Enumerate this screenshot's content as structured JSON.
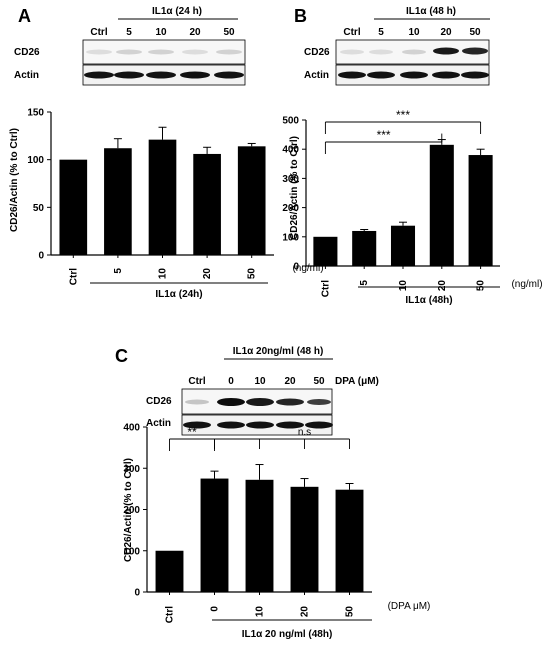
{
  "panels": {
    "a": {
      "letter": "A",
      "blot": {
        "header": "IL1α (24 h)",
        "columns": [
          "Ctrl",
          "5",
          "10",
          "20",
          "50"
        ],
        "rows": [
          "CD26",
          "Actin"
        ],
        "band_intensity": {
          "CD26": [
            0.1,
            0.15,
            0.15,
            0.1,
            0.15
          ],
          "Actin": [
            1,
            1,
            1,
            1,
            1
          ]
        }
      }
    },
    "b": {
      "letter": "B",
      "blot": {
        "header": "IL1α (48 h)",
        "columns": [
          "Ctrl",
          "5",
          "10",
          "20",
          "50"
        ],
        "rows": [
          "CD26",
          "Actin"
        ],
        "band_intensity": {
          "CD26": [
            0.1,
            0.1,
            0.15,
            0.9,
            0.85
          ],
          "Actin": [
            1,
            1,
            1,
            1,
            1
          ]
        }
      },
      "significance": [
        {
          "label": "***",
          "from": "Ctrl",
          "to": "20"
        },
        {
          "label": "***",
          "from": "Ctrl",
          "to": "50"
        }
      ]
    },
    "c": {
      "letter": "C",
      "blot": {
        "header": "IL1α 20ng/ml (48 h)",
        "columns": [
          "Ctrl",
          "0",
          "10",
          "20",
          "50"
        ],
        "unit": "DPA (μM)",
        "rows": [
          "CD26",
          "Actin"
        ],
        "band_intensity": {
          "CD26": [
            0.2,
            0.95,
            0.9,
            0.85,
            0.75
          ],
          "Actin": [
            1,
            1,
            1,
            1,
            1
          ]
        }
      },
      "significance": [
        {
          "label": "**",
          "from": "Ctrl",
          "to": "0"
        },
        {
          "label": "n.s",
          "from": "0",
          "to": "50"
        }
      ]
    }
  },
  "chart_data": [
    {
      "type": "bar",
      "categories": [
        "Ctrl",
        "5",
        "10",
        "20",
        "50"
      ],
      "values": [
        100,
        112,
        121,
        106,
        114
      ],
      "errors": [
        0,
        10,
        13,
        7,
        3
      ],
      "ylabel": "CD26/Actin (% to Ctrl)",
      "xunit": "(ng/ml)",
      "condition": "IL1α (24h)",
      "ylim": [
        0,
        150
      ],
      "yticks": [
        0,
        50,
        100,
        150
      ],
      "grid": false,
      "bar_color": "#000000"
    },
    {
      "type": "bar",
      "categories": [
        "Ctrl",
        "5",
        "10",
        "20",
        "50"
      ],
      "values": [
        100,
        120,
        138,
        415,
        380
      ],
      "errors": [
        0,
        5,
        12,
        18,
        20
      ],
      "ylabel": "CD26/Actin (% to Ctrl)",
      "xunit": "(ng/ml)",
      "condition": "IL1α (48h)",
      "ylim": [
        0,
        500
      ],
      "yticks": [
        0,
        100,
        200,
        300,
        400,
        500
      ],
      "grid": false,
      "bar_color": "#000000"
    },
    {
      "type": "bar",
      "categories": [
        "Ctrl",
        "0",
        "10",
        "20",
        "50"
      ],
      "values": [
        100,
        275,
        272,
        255,
        248
      ],
      "errors": [
        0,
        18,
        37,
        20,
        15
      ],
      "ylabel": "CD26/Actin (% to Ctrl)",
      "xunit": "(DPA μM)",
      "condition": "IL1α 20 ng/ml (48h)",
      "ylim": [
        0,
        400
      ],
      "yticks": [
        0,
        100,
        200,
        300,
        400
      ],
      "grid": false,
      "bar_color": "#000000"
    }
  ]
}
